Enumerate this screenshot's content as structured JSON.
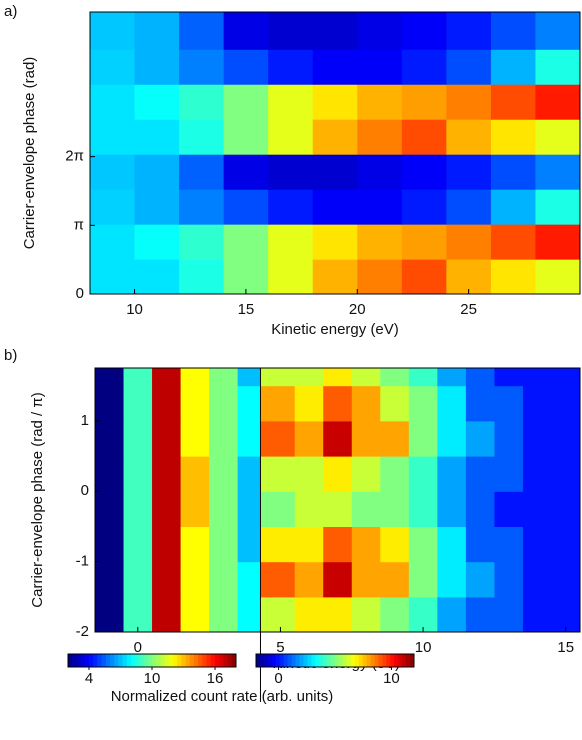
{
  "chart_data": [
    {
      "type": "heatmap",
      "panel_label": "a)",
      "xlabel": "Kinetic energy (eV)",
      "ylabel": "Carrier-envelope phase (rad)",
      "xlim": [
        8,
        30
      ],
      "ylim": [
        0,
        12.9
      ],
      "xticks": [
        10,
        15,
        20,
        25
      ],
      "yticks": [
        0,
        {
          "value": 3.1416,
          "label": "π"
        },
        {
          "value": 6.2832,
          "label": "2π"
        }
      ],
      "x_bins": [
        8,
        10,
        12,
        14,
        16,
        18,
        20,
        22,
        24,
        26,
        28,
        30
      ],
      "y_bins": [
        0,
        1.6,
        3.2,
        4.8,
        6.4,
        8.0,
        9.6,
        11.2,
        12.9
      ],
      "zlim": [
        0,
        1
      ],
      "z": [
        [
          0.35,
          0.35,
          0.4,
          0.5,
          0.6,
          0.7,
          0.75,
          0.8,
          0.7,
          0.65,
          0.6
        ],
        [
          0.35,
          0.38,
          0.42,
          0.5,
          0.6,
          0.65,
          0.7,
          0.72,
          0.75,
          0.8,
          0.85
        ],
        [
          0.33,
          0.3,
          0.25,
          0.2,
          0.15,
          0.12,
          0.12,
          0.15,
          0.2,
          0.3,
          0.4
        ],
        [
          0.32,
          0.3,
          0.22,
          0.1,
          0.08,
          0.08,
          0.1,
          0.12,
          0.15,
          0.2,
          0.25
        ],
        [
          0.35,
          0.35,
          0.4,
          0.5,
          0.6,
          0.7,
          0.75,
          0.8,
          0.7,
          0.65,
          0.6
        ],
        [
          0.35,
          0.38,
          0.42,
          0.5,
          0.6,
          0.65,
          0.7,
          0.72,
          0.75,
          0.8,
          0.85
        ],
        [
          0.33,
          0.3,
          0.25,
          0.2,
          0.15,
          0.12,
          0.12,
          0.15,
          0.2,
          0.3,
          0.4
        ],
        [
          0.32,
          0.3,
          0.22,
          0.1,
          0.08,
          0.08,
          0.1,
          0.12,
          0.15,
          0.2,
          0.25
        ]
      ]
    },
    {
      "type": "heatmap",
      "panel_label": "b)",
      "xlabel": "Kinetic energy (eV)",
      "ylabel": "Carrier-envelope phase (rad / π)",
      "xlim": [
        -1.5,
        15.5
      ],
      "ylim": [
        -2,
        1.75
      ],
      "xticks": [
        0,
        5,
        10,
        15
      ],
      "yticks": [
        -2,
        -1,
        0,
        1
      ],
      "divider_x": 4.3,
      "x_bins": [
        -1.5,
        -0.5,
        0.5,
        1.5,
        2.5,
        3.5,
        4.3,
        5.5,
        6.5,
        7.5,
        8.5,
        9.5,
        10.5,
        11.5,
        12.5,
        13.5,
        14.5,
        15.5
      ],
      "y_bins": [
        -2,
        -1.5,
        -1,
        -0.5,
        0,
        0.5,
        1,
        1.5,
        1.75
      ],
      "z": [
        [
          2,
          9,
          17,
          12,
          10,
          8,
          6,
          7,
          7,
          6,
          5,
          4,
          2,
          1,
          1,
          0,
          0
        ],
        [
          2,
          9,
          17,
          12,
          10,
          8,
          9,
          8,
          11,
          8,
          8,
          5,
          3,
          2,
          1,
          0,
          0
        ],
        [
          2,
          9,
          17,
          12,
          10,
          7,
          7,
          7,
          9,
          8,
          7,
          5,
          3,
          1,
          1,
          0,
          0
        ],
        [
          2,
          9,
          17,
          13,
          10,
          7,
          5,
          6,
          6,
          5,
          5,
          4,
          2,
          1,
          0,
          0,
          0
        ],
        [
          2,
          9,
          17,
          13,
          10,
          7,
          6,
          6,
          7,
          6,
          5,
          4,
          2,
          1,
          1,
          0,
          0
        ],
        [
          2,
          9,
          17,
          12,
          10,
          8,
          9,
          8,
          11,
          8,
          8,
          5,
          3,
          2,
          1,
          0,
          0
        ],
        [
          2,
          9,
          17,
          12,
          10,
          8,
          8,
          7,
          9,
          8,
          6,
          5,
          3,
          1,
          1,
          0,
          0
        ],
        [
          2,
          9,
          17,
          12,
          10,
          7,
          6,
          6,
          7,
          6,
          5,
          4,
          2,
          1,
          0,
          0,
          0
        ]
      ],
      "colorbar_label": "Normalized count rate (arb. units)",
      "colorbars": [
        {
          "zlim": [
            2,
            18
          ],
          "ticks": [
            4,
            10,
            16
          ]
        },
        {
          "zlim": [
            -2,
            12
          ],
          "ticks": [
            0,
            10
          ]
        }
      ]
    }
  ]
}
